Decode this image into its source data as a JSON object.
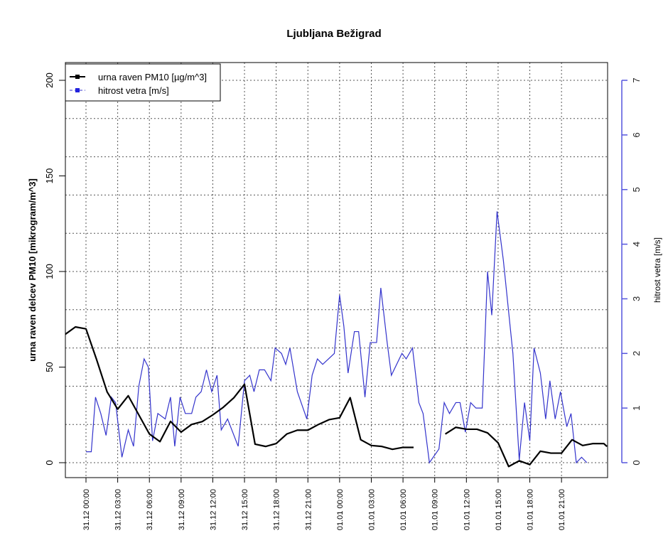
{
  "chart_data": {
    "type": "line",
    "title": "Ljubljana Bežigrad",
    "ylabel": "urna raven delcev PM10 [mikrogram/m^3]",
    "y2label": "hitrost vetra [m/s]",
    "ylim": [
      0,
      200
    ],
    "y2lim": [
      0,
      7
    ],
    "xlim_hours": [
      -2,
      49.3
    ],
    "yticks": [
      0,
      50,
      100,
      150,
      200
    ],
    "y2ticks": [
      0,
      1,
      2,
      3,
      4,
      5,
      6,
      7
    ],
    "ygrid_step": 20,
    "xticks": [
      {
        "hour": 0,
        "label": "31.12 00:00"
      },
      {
        "hour": 3,
        "label": "31.12 03:00"
      },
      {
        "hour": 6,
        "label": "31.12 06:00"
      },
      {
        "hour": 9,
        "label": "31.12 09:00"
      },
      {
        "hour": 12,
        "label": "31.12 12:00"
      },
      {
        "hour": 15,
        "label": "31.12 15:00"
      },
      {
        "hour": 18,
        "label": "31.12 18:00"
      },
      {
        "hour": 21,
        "label": "31.12 21:00"
      },
      {
        "hour": 24,
        "label": "01.01 00:00"
      },
      {
        "hour": 27,
        "label": "01.01 03:00"
      },
      {
        "hour": 30,
        "label": "01.01 06:00"
      },
      {
        "hour": 33,
        "label": "01.01 09:00"
      },
      {
        "hour": 36,
        "label": "01.01 12:00"
      },
      {
        "hour": 39,
        "label": "01.01 15:00"
      },
      {
        "hour": 42,
        "label": "01.01 18:00"
      },
      {
        "hour": 45,
        "label": "01.01 21:00"
      }
    ],
    "legend": {
      "placement": "top-left",
      "entries": [
        "urna raven PM10 [µg/m^3]",
        "hitrost vetra [m/s]"
      ]
    },
    "series": [
      {
        "name": "urna raven PM10 [µg/m^3]",
        "axis": "left",
        "color": "#000000",
        "hours": [
          -2,
          -1,
          0,
          1,
          2,
          3,
          4,
          5,
          6,
          7,
          8,
          9,
          10,
          11,
          12,
          13,
          14,
          15,
          16,
          17,
          18,
          19,
          20,
          21,
          22,
          23,
          24,
          25,
          26,
          27,
          28,
          29,
          30,
          31,
          32,
          33,
          34,
          35,
          36,
          37,
          38,
          39,
          40,
          41,
          42,
          43,
          44,
          45,
          46,
          47,
          48,
          49,
          49.3
        ],
        "values": [
          67,
          71,
          70,
          54,
          37,
          28,
          35,
          25,
          15,
          11,
          21.6,
          16,
          20,
          21.5,
          25,
          29,
          34,
          41,
          9.7,
          8.5,
          10,
          15,
          17,
          17,
          20,
          22.5,
          23.5,
          34,
          12,
          9,
          8.5,
          7,
          8,
          8,
          null,
          null,
          15,
          18.5,
          17.5,
          17.5,
          15.6,
          10.4,
          -2,
          1,
          -1,
          6,
          5,
          5,
          12,
          9,
          10,
          10,
          8.5
        ]
      },
      {
        "name": "hitrost vetra [m/s]",
        "axis": "right",
        "color": "#3333cc",
        "points": [
          [
            0,
            0.2
          ],
          [
            0.5,
            0.2
          ],
          [
            0.9,
            1.2
          ],
          [
            1.4,
            0.9
          ],
          [
            1.9,
            0.5
          ],
          [
            2.4,
            1.2
          ],
          [
            2.8,
            1.1
          ],
          [
            3.4,
            0.1
          ],
          [
            4,
            0.6
          ],
          [
            4.5,
            0.3
          ],
          [
            5,
            1.4
          ],
          [
            5.5,
            1.9
          ],
          [
            5.9,
            1.75
          ],
          [
            6.3,
            0.4
          ],
          [
            6.8,
            0.9
          ],
          [
            7.5,
            0.8
          ],
          [
            8,
            1.2
          ],
          [
            8.4,
            0.3
          ],
          [
            8.9,
            1.2
          ],
          [
            9.4,
            0.9
          ],
          [
            10,
            0.9
          ],
          [
            10.4,
            1.2
          ],
          [
            10.9,
            1.3
          ],
          [
            11.4,
            1.7
          ],
          [
            11.9,
            1.3
          ],
          [
            12.4,
            1.6
          ],
          [
            12.8,
            0.6
          ],
          [
            13.4,
            0.8
          ],
          [
            14.4,
            0.3
          ],
          [
            15,
            1.5
          ],
          [
            15.5,
            1.6
          ],
          [
            15.9,
            1.3
          ],
          [
            16.4,
            1.7
          ],
          [
            16.9,
            1.7
          ],
          [
            17.5,
            1.5
          ],
          [
            17.9,
            2.1
          ],
          [
            18.5,
            2.0
          ],
          [
            18.9,
            1.8
          ],
          [
            19.3,
            2.1
          ],
          [
            20,
            1.3
          ],
          [
            20.9,
            0.8
          ],
          [
            21.4,
            1.6
          ],
          [
            21.9,
            1.9
          ],
          [
            22.4,
            1.8
          ],
          [
            23.5,
            2.0
          ],
          [
            24,
            3.07
          ],
          [
            24.4,
            2.5
          ],
          [
            24.8,
            1.64
          ],
          [
            25.4,
            2.4
          ],
          [
            25.8,
            2.4
          ],
          [
            26.4,
            1.2
          ],
          [
            26.9,
            2.2
          ],
          [
            27.5,
            2.2
          ],
          [
            27.9,
            3.2
          ],
          [
            28.5,
            2.2
          ],
          [
            28.9,
            1.6
          ],
          [
            29.9,
            2.0
          ],
          [
            30.3,
            1.9
          ],
          [
            30.9,
            2.1
          ],
          [
            31.5,
            1.1
          ],
          [
            31.9,
            0.9
          ],
          [
            32.5,
            0
          ],
          [
            33.4,
            0.25
          ],
          [
            33.9,
            1.1
          ],
          [
            34.4,
            0.9
          ],
          [
            35,
            1.1
          ],
          [
            35.4,
            1.1
          ],
          [
            35.9,
            0.56
          ],
          [
            36.4,
            1.1
          ],
          [
            36.9,
            1.0
          ],
          [
            37.5,
            1.0
          ],
          [
            38,
            3.5
          ],
          [
            38.4,
            2.7
          ],
          [
            38.9,
            4.6
          ],
          [
            39.5,
            3.7
          ],
          [
            40.4,
            2.0
          ],
          [
            41,
            0.05
          ],
          [
            41.5,
            1.1
          ],
          [
            42,
            0.4
          ],
          [
            42.4,
            2.1
          ],
          [
            43,
            1.64
          ],
          [
            43.5,
            0.8
          ],
          [
            43.9,
            1.5
          ],
          [
            44.4,
            0.8
          ],
          [
            44.9,
            1.3
          ],
          [
            45.5,
            0.66
          ],
          [
            45.9,
            0.9
          ],
          [
            46.4,
            0
          ],
          [
            46.9,
            0.1
          ],
          [
            47.4,
            0
          ]
        ]
      }
    ]
  }
}
